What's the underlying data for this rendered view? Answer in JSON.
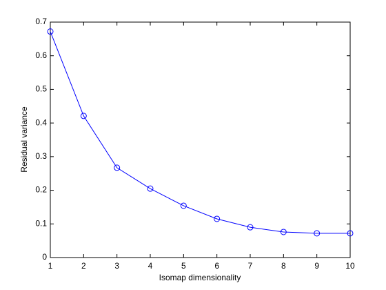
{
  "chart_data": {
    "type": "line",
    "x_label": "Isomap dimensionality",
    "y_label": "Residual variance",
    "x": [
      1,
      2,
      3,
      4,
      5,
      6,
      7,
      8,
      9,
      10
    ],
    "series": [
      {
        "color": "#0000ff",
        "marker": "circle",
        "values": [
          0.672,
          0.421,
          0.267,
          0.205,
          0.154,
          0.115,
          0.09,
          0.076,
          0.072,
          0.072
        ]
      }
    ],
    "xlim": [
      1,
      10
    ],
    "ylim": [
      0,
      0.7
    ],
    "xticks": [
      1,
      2,
      3,
      4,
      5,
      6,
      7,
      8,
      9,
      10
    ],
    "yticks": [
      0,
      0.1,
      0.2,
      0.3,
      0.4,
      0.5,
      0.6,
      0.7
    ],
    "grid": false
  }
}
